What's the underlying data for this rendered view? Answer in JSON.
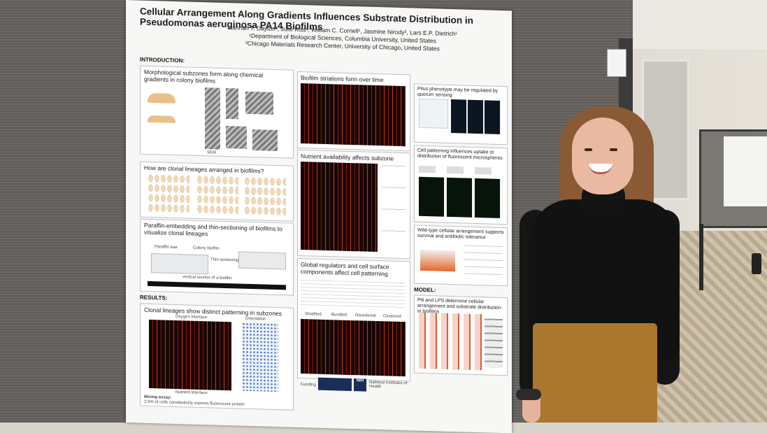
{
  "poster": {
    "title": "Cellular Arrangement Along Gradients Influences Substrate Distribution in Pseudomonas aeruginosa PA14 Biofilms",
    "authors": "Hannah T. Dayton¹, Julie Kiss¹, William C. Cornell¹, Jasmine Nirody², Lars E.P. Dietrich¹",
    "affiliation1": "¹Department of Biological Sciences, Columbia University, United States",
    "affiliation2": "²Chicago Materials Research Center, University of Chicago, United States",
    "intro_heading": "INTRODUCTION:",
    "results_heading": "RESULTS:",
    "model_heading": "MODEL:",
    "panels": {
      "p1": "Morphological subzones form along chemical gradients in colony biofilms",
      "p1_sem": "SEM",
      "p2": "How are clonal lineages arranged in biofilms?",
      "p3": "Paraffin-embedding and thin-sectioning of biofilms to visualize clonal lineages",
      "p3_wax": "Paraffin wax",
      "p3_colony": "Colony biofilm",
      "p3_thin": "Thin sectioning",
      "p3_vertical": "vertical section of a biofilm",
      "p4": "Clonal lineages show distinct patterning in subzones",
      "p4_oxygen": "Oxygen interface",
      "p4_nutrient": "Nutrient interface",
      "p4_mixing": "Mixing assay:",
      "p4_mixing_note": "2.5% of cells constitutively express fluorescent protein",
      "p4_orientation": "Orientation",
      "p5": "Biofilm striations form over time",
      "p6": "Nutrient availability affects subzone arrangement",
      "p7": "Global regulators and cell surface components affect cell patterning",
      "p7_labels": [
        "Stratified",
        "Bundled",
        "Disordered",
        "Clustered"
      ],
      "p8": "Pilus phenotype may be regulated by quorum sensing",
      "p9": "Cell patterning influences uptake or distribution of fluorescent microspheres",
      "p10": "Wild-type cellular arrangement supports survival and antibiotic tolerance",
      "p11": "Pili and LPS determine cellular arrangement and substrate distribution in biofilms",
      "funding": "Funding",
      "nih": "National Institutes of Health",
      "nih_badge": "NIH"
    }
  },
  "colors": {
    "poster_bg": "#f7f7f5",
    "board": "#64615e",
    "accent_red": "#c43a22",
    "scatter_blue": "#3b6fc4",
    "pants": "#a9772d"
  }
}
